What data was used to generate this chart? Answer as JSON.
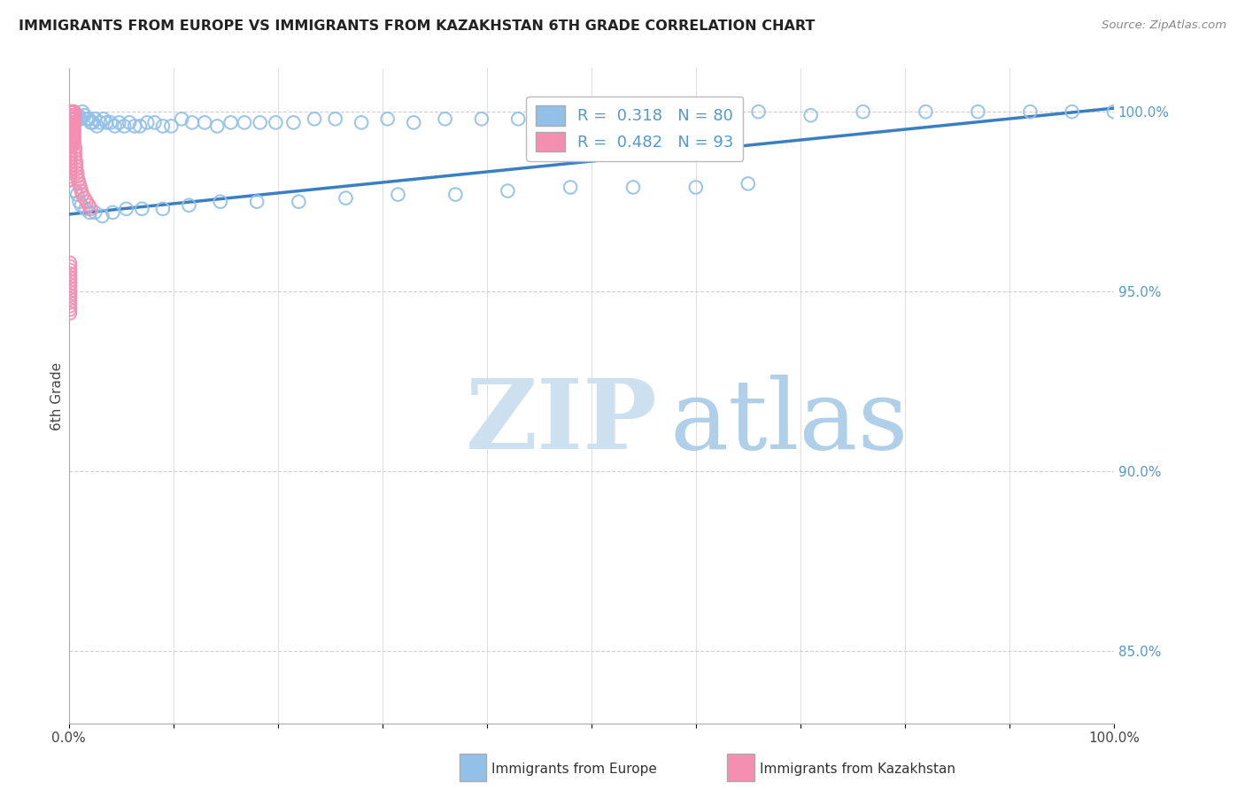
{
  "title": "IMMIGRANTS FROM EUROPE VS IMMIGRANTS FROM KAZAKHSTAN 6TH GRADE CORRELATION CHART",
  "source": "Source: ZipAtlas.com",
  "ylabel": "6th Grade",
  "xlim": [
    0.0,
    1.0
  ],
  "ylim": [
    0.83,
    1.012
  ],
  "x_ticks": [
    0.0,
    0.1,
    0.2,
    0.3,
    0.4,
    0.5,
    0.6,
    0.7,
    0.8,
    0.9,
    1.0
  ],
  "x_tick_labels": [
    "0.0%",
    "",
    "",
    "",
    "",
    "",
    "",
    "",
    "",
    "",
    "100.0%"
  ],
  "y_ticks_right": [
    0.85,
    0.9,
    0.95,
    1.0
  ],
  "y_tick_labels_right": [
    "85.0%",
    "90.0%",
    "95.0%",
    "100.0%"
  ],
  "legend_blue_label": "Immigrants from Europe",
  "legend_pink_label": "Immigrants from Kazakhstan",
  "R_blue": "0.318",
  "N_blue": "80",
  "R_pink": "0.482",
  "N_pink": "93",
  "blue_color": "#92c0e8",
  "pink_color": "#f48fb1",
  "trend_color": "#3a7fc1",
  "background_color": "#ffffff",
  "watermark_ZIP_color": "#cce0f0",
  "watermark_atlas_color": "#b0d0ea",
  "grid_color": "#d0d0d0",
  "right_axis_color": "#5599cc",
  "blue_scatter_x": [
    0.003,
    0.005,
    0.007,
    0.009,
    0.011,
    0.013,
    0.015,
    0.017,
    0.019,
    0.021,
    0.023,
    0.025,
    0.027,
    0.03,
    0.033,
    0.036,
    0.04,
    0.044,
    0.048,
    0.053,
    0.058,
    0.063,
    0.068,
    0.075,
    0.082,
    0.09,
    0.098,
    0.108,
    0.118,
    0.13,
    0.142,
    0.155,
    0.168,
    0.183,
    0.198,
    0.215,
    0.235,
    0.255,
    0.28,
    0.305,
    0.33,
    0.36,
    0.395,
    0.43,
    0.47,
    0.51,
    0.56,
    0.61,
    0.66,
    0.71,
    0.76,
    0.82,
    0.87,
    0.92,
    0.96,
    1.0,
    0.006,
    0.008,
    0.01,
    0.012,
    0.016,
    0.02,
    0.025,
    0.032,
    0.042,
    0.055,
    0.07,
    0.09,
    0.115,
    0.145,
    0.18,
    0.22,
    0.265,
    0.315,
    0.37,
    0.42,
    0.48,
    0.54,
    0.6,
    0.65
  ],
  "blue_scatter_y": [
    0.998,
    1.0,
    0.999,
    0.999,
    0.998,
    1.0,
    0.999,
    0.998,
    0.998,
    0.997,
    0.997,
    0.998,
    0.996,
    0.997,
    0.998,
    0.997,
    0.997,
    0.996,
    0.997,
    0.996,
    0.997,
    0.996,
    0.996,
    0.997,
    0.997,
    0.996,
    0.996,
    0.998,
    0.997,
    0.997,
    0.996,
    0.997,
    0.997,
    0.997,
    0.997,
    0.997,
    0.998,
    0.998,
    0.997,
    0.998,
    0.997,
    0.998,
    0.998,
    0.998,
    0.998,
    0.999,
    0.999,
    0.999,
    1.0,
    0.999,
    1.0,
    1.0,
    1.0,
    1.0,
    1.0,
    1.0,
    0.978,
    0.977,
    0.975,
    0.974,
    0.973,
    0.972,
    0.972,
    0.971,
    0.972,
    0.973,
    0.973,
    0.973,
    0.974,
    0.975,
    0.975,
    0.975,
    0.976,
    0.977,
    0.977,
    0.978,
    0.979,
    0.979,
    0.979,
    0.98
  ],
  "pink_scatter_x": [
    0.001,
    0.001,
    0.001,
    0.001,
    0.001,
    0.001,
    0.001,
    0.001,
    0.001,
    0.001,
    0.001,
    0.001,
    0.001,
    0.001,
    0.001,
    0.001,
    0.001,
    0.001,
    0.001,
    0.001,
    0.002,
    0.002,
    0.002,
    0.002,
    0.002,
    0.002,
    0.002,
    0.002,
    0.002,
    0.002,
    0.003,
    0.003,
    0.003,
    0.003,
    0.003,
    0.003,
    0.003,
    0.003,
    0.003,
    0.003,
    0.004,
    0.004,
    0.004,
    0.004,
    0.004,
    0.004,
    0.004,
    0.004,
    0.004,
    0.004,
    0.005,
    0.005,
    0.005,
    0.005,
    0.005,
    0.005,
    0.005,
    0.005,
    0.005,
    0.005,
    0.006,
    0.006,
    0.006,
    0.006,
    0.007,
    0.007,
    0.007,
    0.008,
    0.008,
    0.009,
    0.01,
    0.011,
    0.012,
    0.013,
    0.015,
    0.017,
    0.019,
    0.021,
    0.001,
    0.001,
    0.001,
    0.001,
    0.001,
    0.001,
    0.001,
    0.001,
    0.001,
    0.001,
    0.001,
    0.001,
    0.001,
    0.001,
    0.001
  ],
  "pink_scatter_y": [
    1.0,
    0.999,
    0.998,
    0.997,
    0.996,
    0.995,
    0.994,
    0.993,
    0.992,
    0.991,
    0.99,
    0.989,
    0.988,
    0.987,
    0.986,
    0.985,
    0.984,
    0.983,
    0.982,
    0.981,
    1.0,
    0.999,
    0.998,
    0.997,
    0.996,
    0.995,
    0.994,
    0.993,
    0.992,
    0.991,
    1.0,
    0.999,
    0.998,
    0.997,
    0.996,
    0.995,
    0.994,
    0.993,
    0.992,
    0.991,
    1.0,
    0.999,
    0.998,
    0.997,
    0.996,
    0.995,
    0.994,
    0.993,
    0.992,
    0.991,
    1.0,
    0.999,
    0.998,
    0.997,
    0.996,
    0.995,
    0.994,
    0.993,
    0.992,
    0.991,
    0.99,
    0.989,
    0.988,
    0.987,
    0.986,
    0.985,
    0.984,
    0.983,
    0.982,
    0.981,
    0.98,
    0.979,
    0.978,
    0.977,
    0.976,
    0.975,
    0.974,
    0.973,
    0.958,
    0.957,
    0.956,
    0.955,
    0.954,
    0.953,
    0.952,
    0.951,
    0.95,
    0.949,
    0.948,
    0.947,
    0.946,
    0.945,
    0.944
  ],
  "trend_x_start": 0.0,
  "trend_x_end": 1.0,
  "trend_y_start": 0.9715,
  "trend_y_end": 1.001
}
